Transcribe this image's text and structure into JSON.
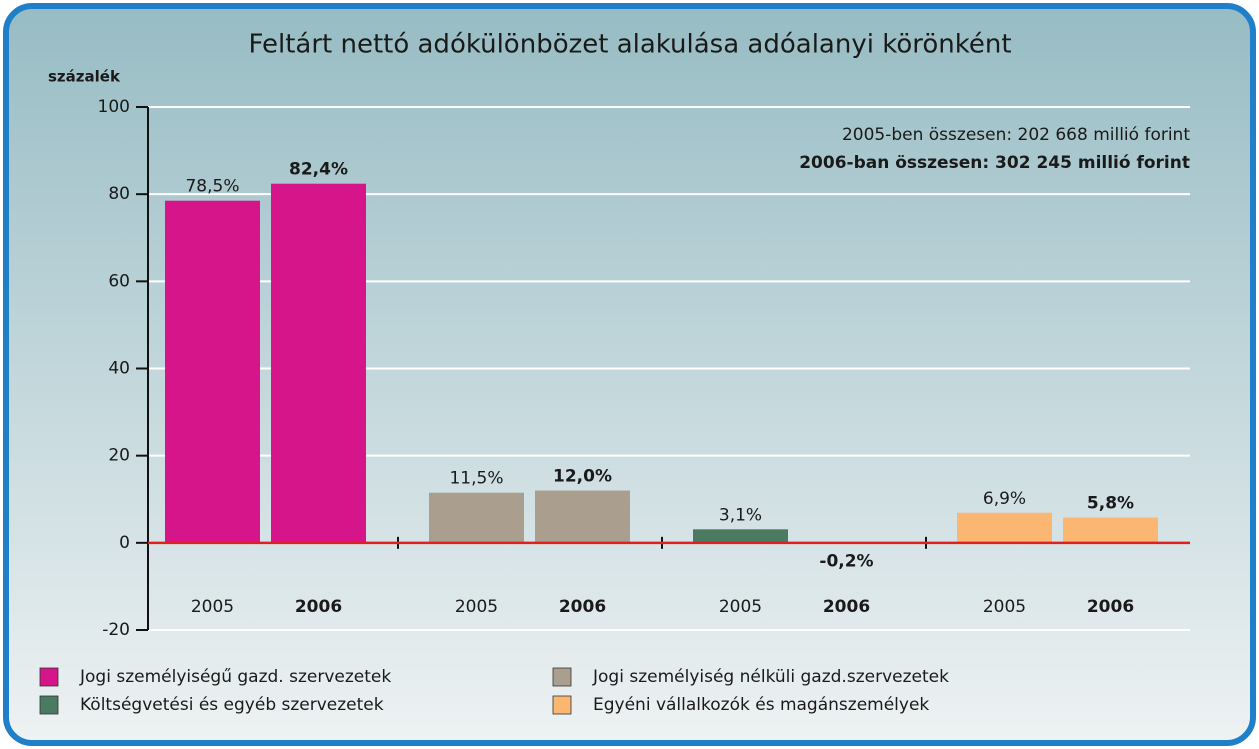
{
  "chart_data": {
    "type": "bar",
    "title": "Feltárt nettó adókülönbözet alakulása adóalanyi körönként",
    "ylabel": "százalék",
    "categories": [
      "Jogi személyiségű gazd. szervezetek",
      "Jogi személyiség nélküli gazd.szervezetek",
      "Költségvetési és egyéb szervezetek",
      "Egyéni vállalkozók és magánszemélyek"
    ],
    "colors": [
      "#d6158a",
      "#aa9f8e",
      "#4a7a62",
      "#fbb672"
    ],
    "series": [
      {
        "name": "2005",
        "values": [
          78.5,
          11.5,
          3.1,
          6.9
        ],
        "value_labels": [
          "78,5%",
          "11,5%",
          "3,1%",
          "6,9%"
        ]
      },
      {
        "name": "2006",
        "values": [
          82.4,
          12.0,
          -0.2,
          5.8
        ],
        "value_labels": [
          "82,4%",
          "12,0%",
          "-0,2%",
          "5,8%"
        ]
      }
    ],
    "annotations": [
      "2005-ben összesen: 202 668 millió forint",
      "2006-ban összesen: 302 245 millió forint"
    ],
    "ylim": [
      -20,
      100
    ],
    "yticks": [
      -20,
      0,
      20,
      40,
      60,
      80,
      100
    ],
    "grid": true
  }
}
